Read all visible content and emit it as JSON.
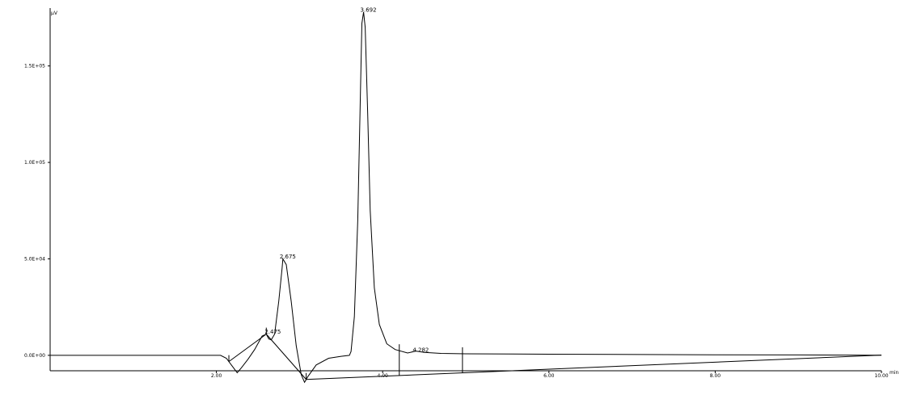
{
  "chart_data": {
    "type": "line",
    "title": "",
    "ylabel": "µV",
    "xlabel": "min",
    "ylim": [
      -8000,
      180000
    ],
    "xlim": [
      0,
      10
    ],
    "y_tick_labels": [
      {
        "value": 0,
        "label": "0.0E+00"
      },
      {
        "value": 50000,
        "label": "5.0E+04"
      },
      {
        "value": 100000,
        "label": "1.0E+05"
      },
      {
        "value": 150000,
        "label": "1.5E+05"
      }
    ],
    "x_tick_labels": [
      {
        "value": 2,
        "label": "2.00"
      },
      {
        "value": 4,
        "label": "4.00"
      },
      {
        "value": 6,
        "label": "6.00"
      },
      {
        "value": 8,
        "label": "8.00"
      },
      {
        "value": 10,
        "label": "10.00"
      }
    ],
    "series": [
      {
        "values": [
          [
            0.0,
            0
          ],
          [
            1.5,
            0
          ],
          [
            2.05,
            0
          ],
          [
            2.12,
            -1500
          ],
          [
            2.18,
            -5000
          ],
          [
            2.25,
            -9000
          ],
          [
            2.3,
            -6500
          ],
          [
            2.38,
            -2000
          ],
          [
            2.46,
            3000
          ],
          [
            2.55,
            10000
          ],
          [
            2.6,
            11000
          ],
          [
            2.63,
            8500
          ],
          [
            2.66,
            8000
          ],
          [
            2.7,
            11000
          ],
          [
            2.75,
            28000
          ],
          [
            2.79,
            45000
          ],
          [
            2.8,
            50000
          ],
          [
            2.84,
            47000
          ],
          [
            2.9,
            28000
          ],
          [
            2.96,
            5000
          ],
          [
            3.02,
            -10000
          ],
          [
            3.06,
            -14000
          ],
          [
            3.1,
            -11000
          ],
          [
            3.2,
            -5000
          ],
          [
            3.35,
            -1500
          ],
          [
            3.5,
            -500
          ],
          [
            3.6,
            0
          ],
          [
            3.62,
            2000
          ],
          [
            3.66,
            20000
          ],
          [
            3.7,
            70000
          ],
          [
            3.73,
            130000
          ],
          [
            3.75,
            172000
          ],
          [
            3.77,
            178000
          ],
          [
            3.79,
            170000
          ],
          [
            3.82,
            125000
          ],
          [
            3.85,
            75000
          ],
          [
            3.9,
            35000
          ],
          [
            3.96,
            16000
          ],
          [
            4.05,
            6000
          ],
          [
            4.15,
            3000
          ],
          [
            4.3,
            1200
          ],
          [
            4.4,
            2200
          ],
          [
            4.5,
            1500
          ],
          [
            4.7,
            1000
          ],
          [
            5.0,
            800
          ],
          [
            6.0,
            600
          ],
          [
            8.0,
            300
          ],
          [
            9.0,
            200
          ],
          [
            10.0,
            100
          ]
        ]
      }
    ],
    "baselines": [
      {
        "x": [
          2.15,
          2.6
        ]
      },
      {
        "x": [
          2.6,
          3.08
        ]
      },
      {
        "x": [
          3.08,
          10.0
        ]
      }
    ],
    "peak_markers": [
      2.15,
      2.6,
      3.08,
      4.2,
      4.96
    ],
    "annotations": [
      {
        "label": "2.475",
        "x": 2.62,
        "y": 12000
      },
      {
        "label": "2.675",
        "x": 2.8,
        "y": 51000
      },
      {
        "label": "3.692",
        "x": 3.77,
        "y": 179000
      },
      {
        "label": "4.282",
        "x": 4.4,
        "y": 2600
      }
    ],
    "grid": false,
    "legend": "none"
  }
}
